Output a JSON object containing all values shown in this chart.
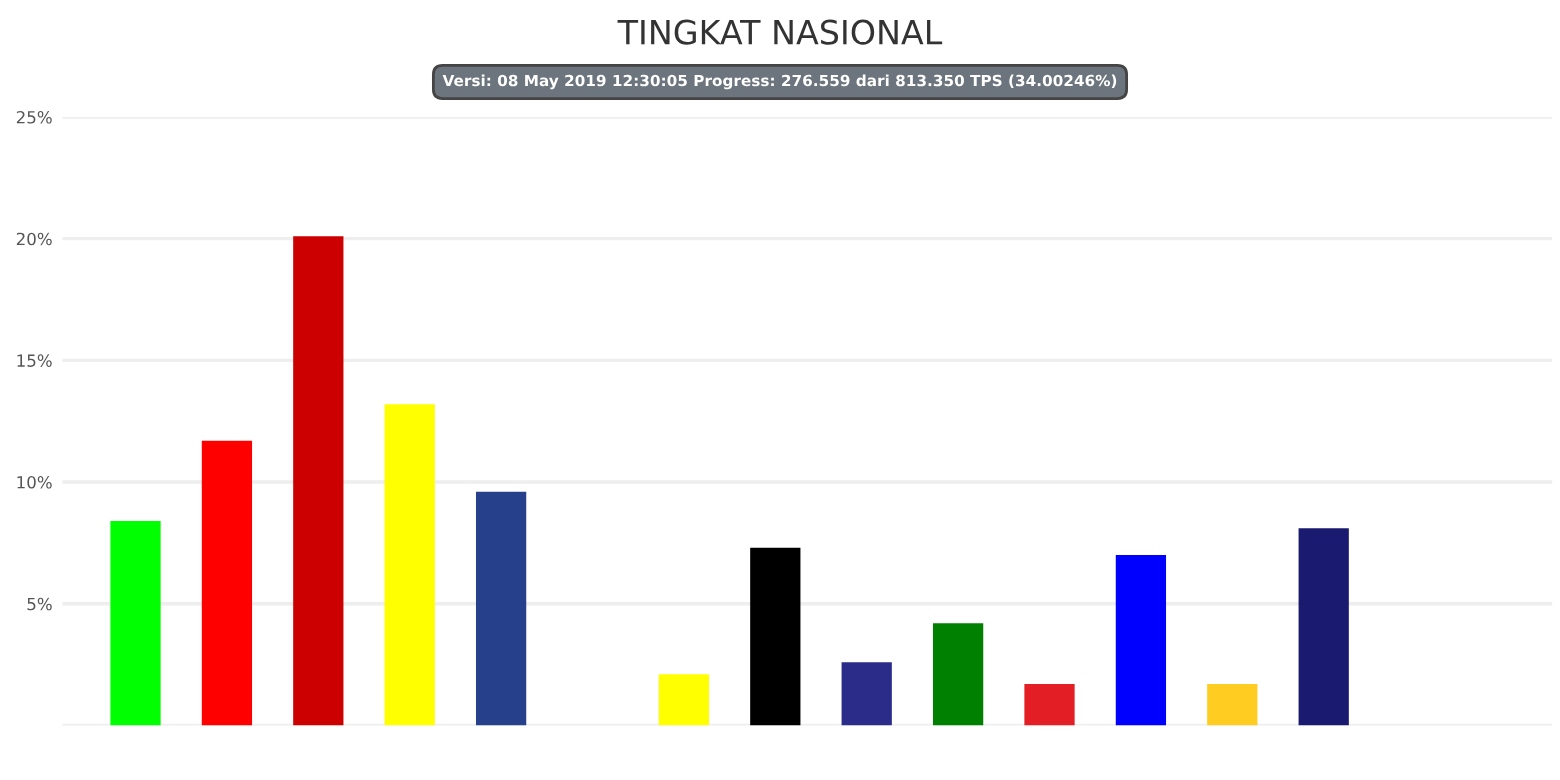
{
  "chart_data": {
    "type": "bar",
    "title": "TINGKAT NASIONAL",
    "subtitle": "Versi: 08 May 2019 12:30:05 Progress: 276.559 dari 813.350 TPS (34.00246%)",
    "categories": [
      null,
      null,
      null,
      null,
      null,
      null,
      null,
      null,
      null,
      null,
      null,
      null,
      null,
      null,
      null,
      null
    ],
    "values": [
      8.4,
      11.7,
      20.1,
      13.2,
      9.6,
      null,
      2.1,
      7.3,
      2.6,
      4.2,
      1.7,
      7.0,
      1.7,
      8.1,
      null,
      null
    ],
    "colors": [
      "#00ff00",
      "#ff0000",
      "#cc0000",
      "#ffff00",
      "#26408b",
      "#ffffff",
      "#ffff00",
      "#000000",
      "#2b2b8a",
      "#008000",
      "#e31e24",
      "#0000ff",
      "#ffcc22",
      "#1a1a70",
      "#ffffff",
      "#ffffff"
    ],
    "ylim": [
      0,
      25
    ],
    "yticks": [
      {
        "value": 0,
        "label": null
      },
      {
        "value": 5,
        "label": "5%"
      },
      {
        "value": 10,
        "label": "10%"
      },
      {
        "value": 15,
        "label": "15%"
      },
      {
        "value": 20,
        "label": "20%"
      },
      {
        "value": 25,
        "label": "25%"
      }
    ],
    "grid": "y",
    "legend": false
  }
}
